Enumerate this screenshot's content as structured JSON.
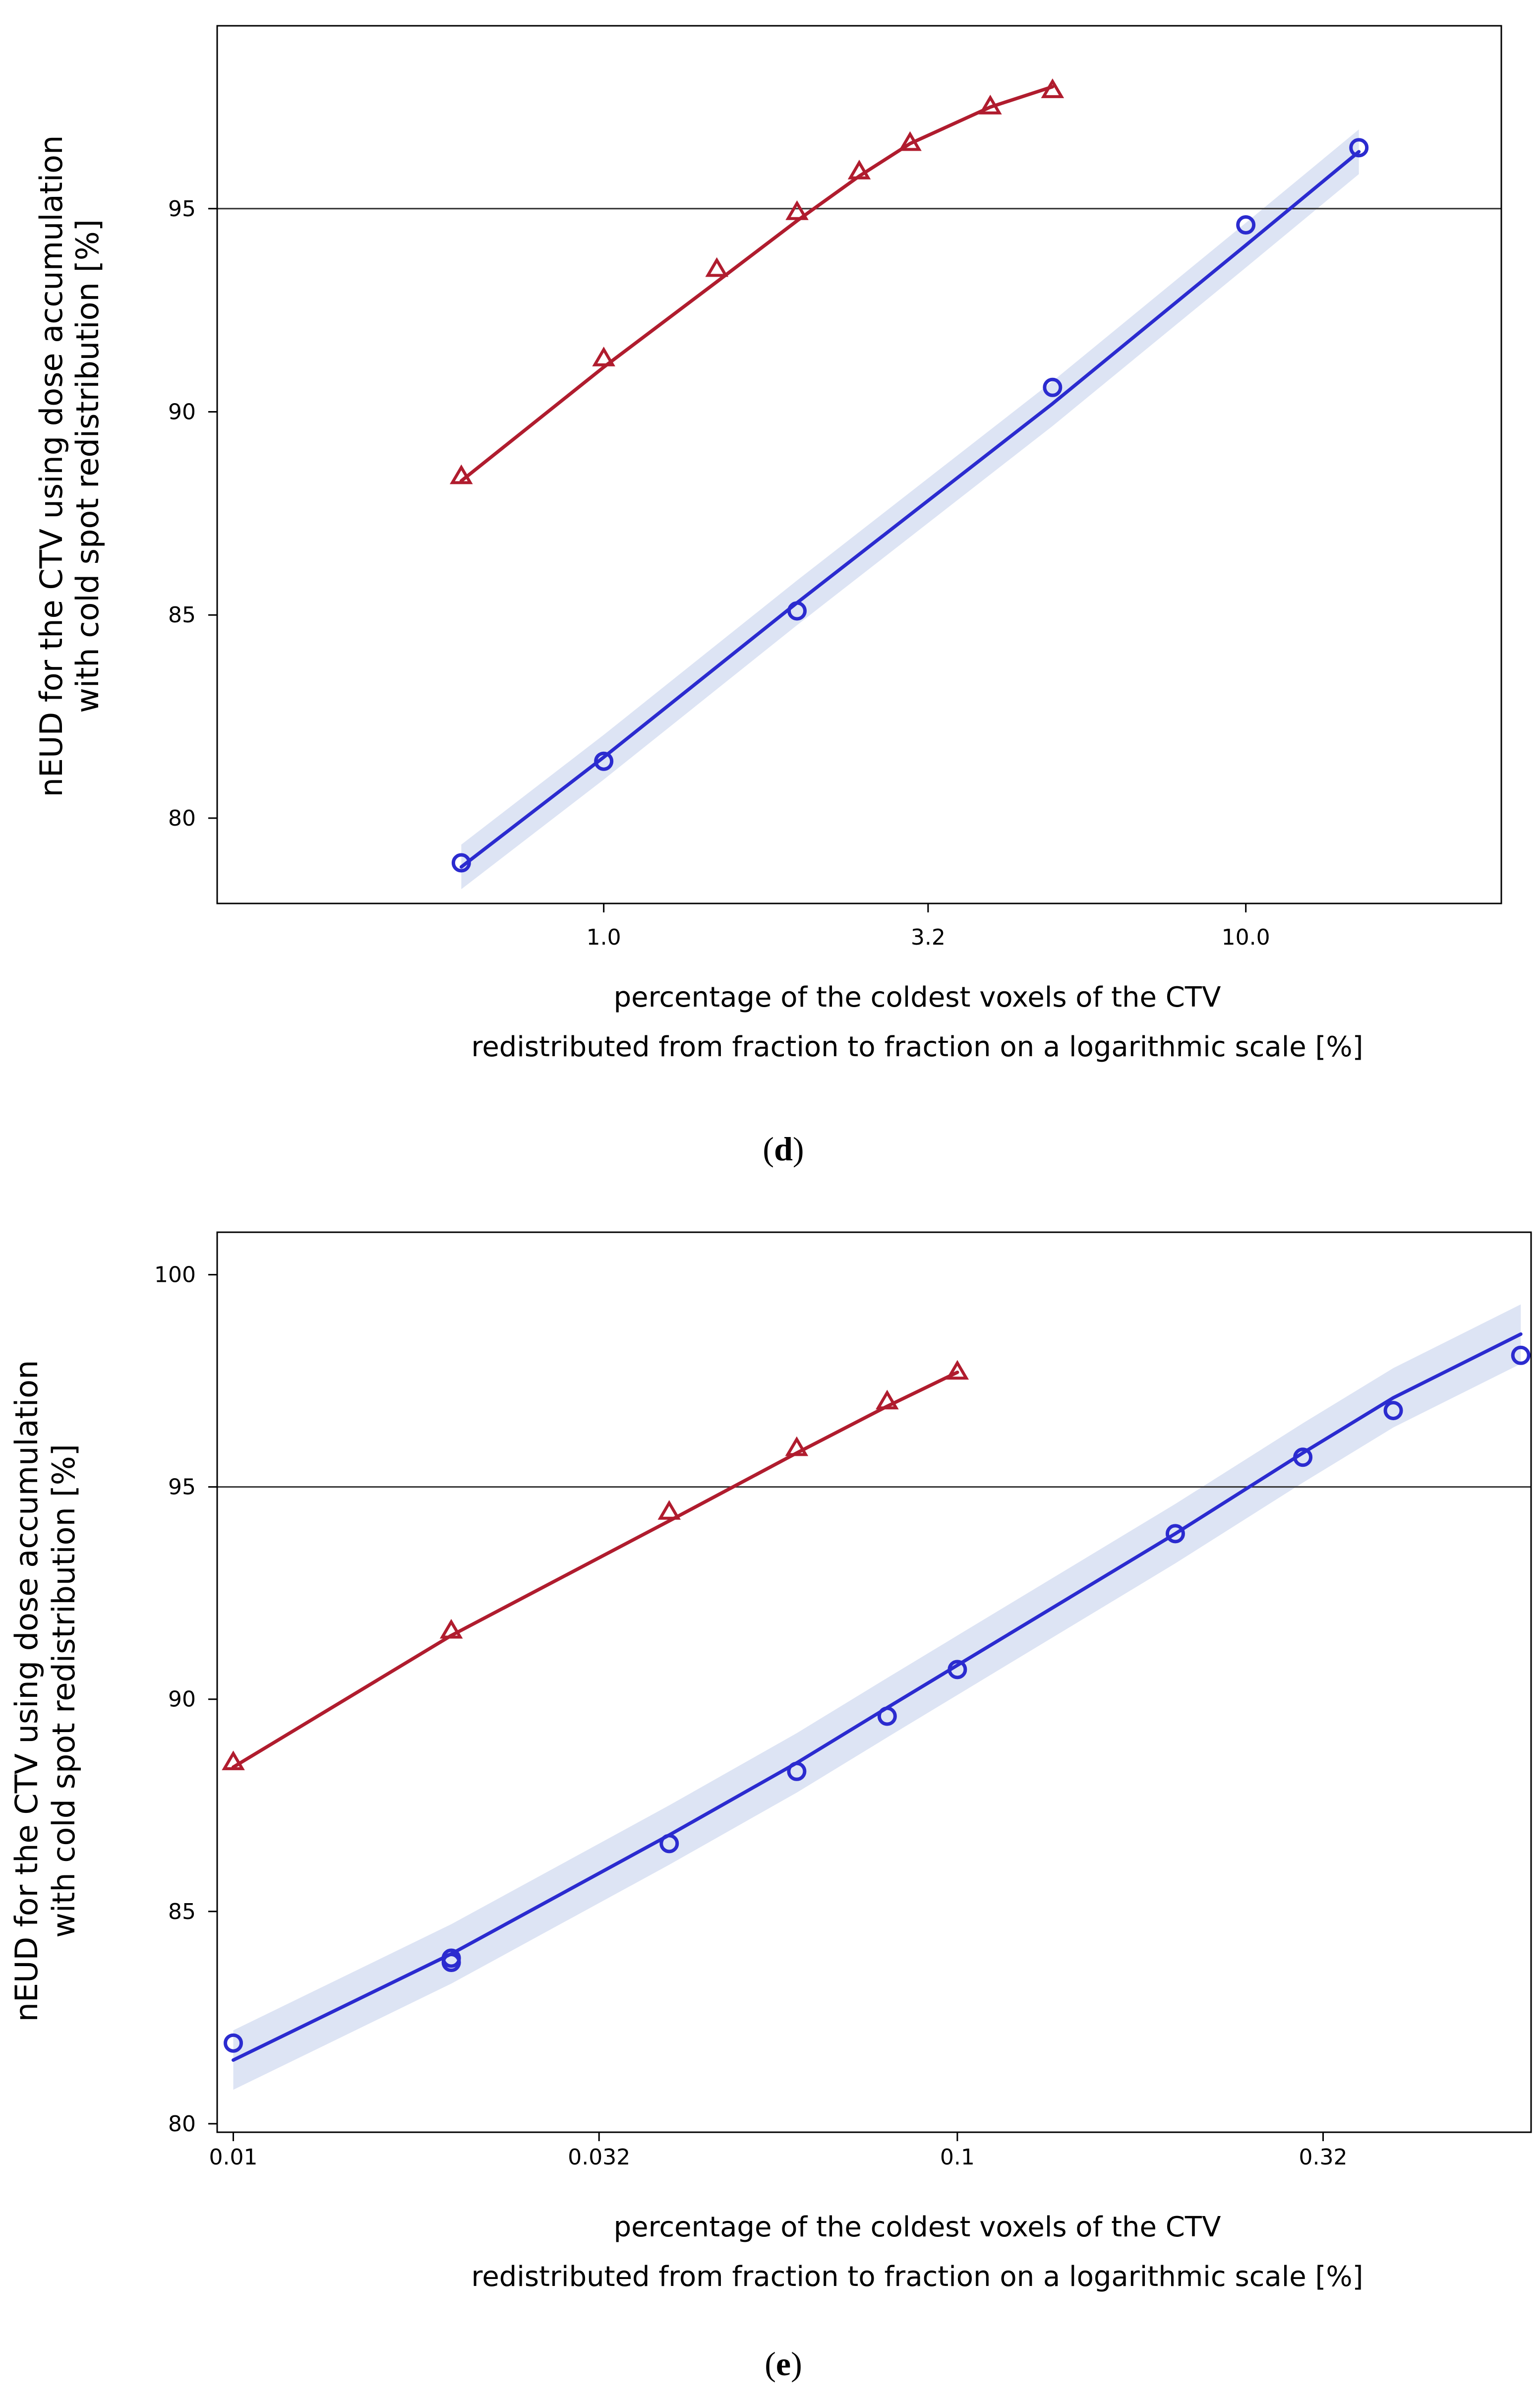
{
  "chart_data": [
    {
      "panel_id": "d",
      "panel_label": [
        "(",
        "d",
        ")"
      ],
      "type": "line",
      "xscale": "log",
      "xlabel": [
        "percentage of the coldest voxels of the CTV",
        "redistributed from fraction to fraction on a logarithmic scale [%]"
      ],
      "ylabel": [
        "nEUD for the CTV using dose accumulation",
        "with cold spot redistribution [%]"
      ],
      "xlim": [
        0.25,
        25
      ],
      "ylim": [
        77.9,
        99.5
      ],
      "xticks": [
        {
          "value": 1.0,
          "label": "1.0"
        },
        {
          "value": 3.2,
          "label": "3.2"
        },
        {
          "value": 10.0,
          "label": "10.0"
        }
      ],
      "yticks": [
        {
          "value": 80,
          "label": "80"
        },
        {
          "value": 85,
          "label": "85"
        },
        {
          "value": 90,
          "label": "90"
        },
        {
          "value": 95,
          "label": "95"
        }
      ],
      "reference_line": 95,
      "series": [
        {
          "name": "red",
          "color": "#b01c2e",
          "marker": "triangle",
          "band": false,
          "x": [
            0.6,
            1.0,
            1.5,
            2.0,
            2.5,
            3.0,
            4.0,
            5.0
          ],
          "y": [
            88.4,
            91.3,
            93.5,
            94.9,
            95.9,
            96.6,
            97.5,
            97.9
          ],
          "fit": [
            [
              0.6,
              88.3
            ],
            [
              1.0,
              91.1
            ],
            [
              1.5,
              93.2
            ],
            [
              2.0,
              94.7
            ],
            [
              2.5,
              95.8
            ],
            [
              3.0,
              96.6
            ],
            [
              4.0,
              97.5
            ],
            [
              5.0,
              98.0
            ]
          ]
        },
        {
          "name": "blue",
          "color": "#2b2bcf",
          "marker": "circle",
          "band": true,
          "band_color": "#dde4f4",
          "band_halfwidth": 0.55,
          "x": [
            0.6,
            1.0,
            2.0,
            5.0,
            10.0,
            15.0
          ],
          "y": [
            78.9,
            81.4,
            85.1,
            90.6,
            94.6,
            96.5
          ],
          "fit": [
            [
              0.6,
              78.8
            ],
            [
              1.0,
              81.5
            ],
            [
              2.0,
              85.3
            ],
            [
              5.0,
              90.2
            ],
            [
              10.0,
              94.1
            ],
            [
              15.0,
              96.4
            ]
          ]
        }
      ]
    },
    {
      "panel_id": "e",
      "panel_label": [
        "(",
        "e",
        ")"
      ],
      "type": "line",
      "xscale": "log",
      "xlabel": [
        "percentage of the coldest voxels of the CTV",
        "redistributed from fraction to fraction on a logarithmic scale [%]"
      ],
      "ylabel": [
        "nEUD for the CTV using dose accumulation",
        "with cold spot redistribution [%]"
      ],
      "xlim": [
        0.0095,
        0.62
      ],
      "ylim": [
        79.8,
        101
      ],
      "xticks": [
        {
          "value": 0.01,
          "label": "0.01"
        },
        {
          "value": 0.032,
          "label": "0.032"
        },
        {
          "value": 0.1,
          "label": "0.1"
        },
        {
          "value": 0.32,
          "label": "0.32"
        }
      ],
      "yticks": [
        {
          "value": 80,
          "label": "80"
        },
        {
          "value": 85,
          "label": "85"
        },
        {
          "value": 90,
          "label": "90"
        },
        {
          "value": 95,
          "label": "95"
        },
        {
          "value": 100,
          "label": "100"
        }
      ],
      "reference_line": 95,
      "series": [
        {
          "name": "red",
          "color": "#b01c2e",
          "marker": "triangle",
          "band": false,
          "x": [
            0.01,
            0.02,
            0.04,
            0.06,
            0.08,
            0.1
          ],
          "y": [
            88.5,
            91.6,
            94.4,
            95.9,
            97.0,
            97.7
          ],
          "fit": [
            [
              0.01,
              88.4
            ],
            [
              0.02,
              91.5
            ],
            [
              0.04,
              94.2
            ],
            [
              0.06,
              95.8
            ],
            [
              0.08,
              96.9
            ],
            [
              0.1,
              97.7
            ]
          ]
        },
        {
          "name": "blue",
          "color": "#2b2bcf",
          "marker": "circle",
          "band": true,
          "band_color": "#dde4f4",
          "band_halfwidth": 0.7,
          "x": [
            0.01,
            0.02,
            0.02,
            0.04,
            0.06,
            0.08,
            0.1,
            0.2,
            0.3,
            0.4,
            0.6
          ],
          "y": [
            81.9,
            83.9,
            83.8,
            86.6,
            88.3,
            89.6,
            90.7,
            93.9,
            95.7,
            96.8,
            98.1
          ],
          "fit": [
            [
              0.01,
              81.5
            ],
            [
              0.02,
              84.0
            ],
            [
              0.04,
              86.8
            ],
            [
              0.06,
              88.5
            ],
            [
              0.08,
              89.8
            ],
            [
              0.1,
              90.8
            ],
            [
              0.2,
              93.9
            ],
            [
              0.3,
              95.8
            ],
            [
              0.4,
              97.1
            ],
            [
              0.6,
              98.6
            ]
          ]
        }
      ]
    }
  ]
}
